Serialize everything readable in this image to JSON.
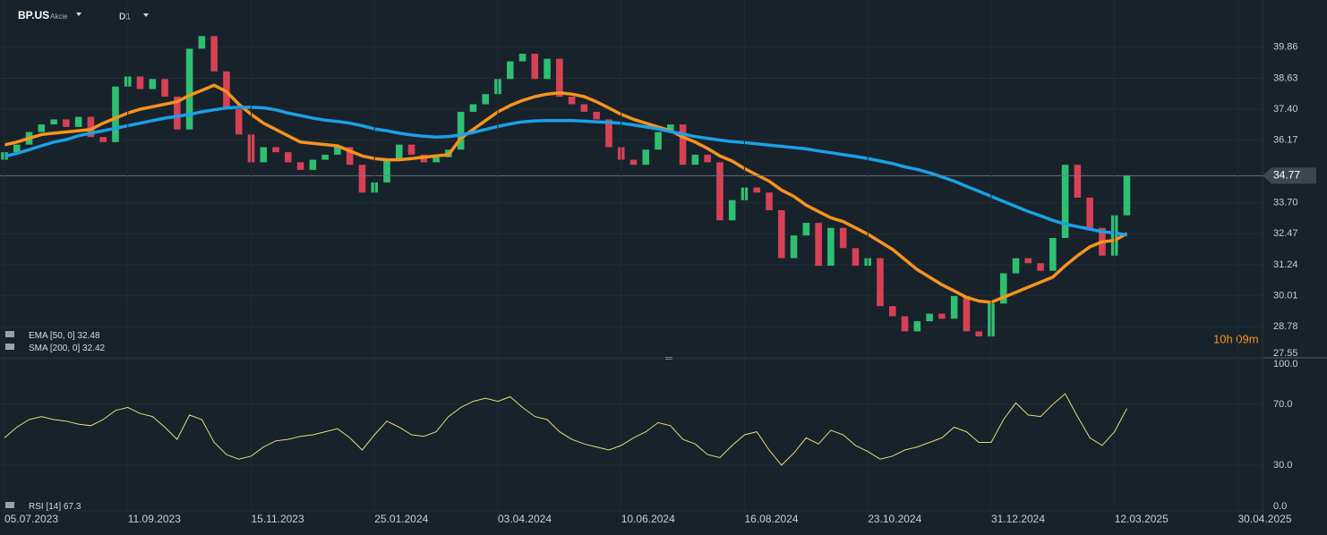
{
  "header": {
    "symbol": "BP.US",
    "kind": "Akcie",
    "timeframe": "D1",
    "countdown": "10h 09m"
  },
  "chart_data": [
    {
      "type": "candlestick",
      "up_color": "#2fbf71",
      "down_color": "#d74155",
      "grid": true,
      "xlim": [
        0,
        102
      ],
      "ylim": [
        27.55,
        41.73
      ],
      "yticks": [
        39.86,
        38.63,
        {
          "value": 37.4,
          "label": "37.40"
        },
        36.17,
        {
          "value": 33.7,
          "label": "33.70"
        },
        32.47,
        31.24,
        30.01,
        28.78,
        27.55
      ],
      "open": [
        35.4,
        35.7,
        36.0,
        36.5,
        36.8,
        37.0,
        36.7,
        37.1,
        36.3,
        36.1,
        38.3,
        38.7,
        38.2,
        38.6,
        37.9,
        36.6,
        39.8,
        40.3,
        38.9,
        37.4,
        36.4,
        35.3,
        35.9,
        35.7,
        35.3,
        35.0,
        35.4,
        35.6,
        35.9,
        35.2,
        34.1,
        34.5,
        35.4,
        36.0,
        35.6,
        35.3,
        35.5,
        35.8,
        37.3,
        37.6,
        38.0,
        38.6,
        39.3,
        39.6,
        38.6,
        39.4,
        37.9,
        37.6,
        37.3,
        37.0,
        35.9,
        35.4,
        35.2,
        35.8,
        36.5,
        36.8,
        35.2,
        35.6,
        35.3,
        33.0,
        33.8,
        34.3,
        34.1,
        33.4,
        31.5,
        32.4,
        32.9,
        31.2,
        32.7,
        31.9,
        31.2,
        31.5,
        29.6,
        29.2,
        28.6,
        29.0,
        29.3,
        29.1,
        30.0,
        28.6,
        28.4,
        29.7,
        30.9,
        31.5,
        31.3,
        31.0,
        32.3,
        35.2,
        33.9,
        32.7,
        31.6,
        33.2
      ],
      "close": [
        35.7,
        36.0,
        36.5,
        36.8,
        37.0,
        36.7,
        37.1,
        36.3,
        36.1,
        38.3,
        38.7,
        38.2,
        38.6,
        37.9,
        36.6,
        39.8,
        40.3,
        38.9,
        37.4,
        36.4,
        35.3,
        35.9,
        35.7,
        35.3,
        35.0,
        35.4,
        35.6,
        35.9,
        35.2,
        34.1,
        34.5,
        35.4,
        36.0,
        35.6,
        35.3,
        35.5,
        35.8,
        37.3,
        37.6,
        38.0,
        38.6,
        39.3,
        39.6,
        38.6,
        39.4,
        37.9,
        37.6,
        37.3,
        37.0,
        35.9,
        35.4,
        35.2,
        35.8,
        36.5,
        36.8,
        35.2,
        35.6,
        35.3,
        33.0,
        33.8,
        34.3,
        34.1,
        33.4,
        31.5,
        32.4,
        32.9,
        31.2,
        32.7,
        31.9,
        31.2,
        31.5,
        29.6,
        29.2,
        28.6,
        29.0,
        29.3,
        29.1,
        30.0,
        28.6,
        28.4,
        29.7,
        30.9,
        31.5,
        31.3,
        31.0,
        32.3,
        35.2,
        33.9,
        32.7,
        31.6,
        33.2,
        34.77
      ],
      "series": [
        {
          "name": "EMA [50, 0]",
          "color": "#f7931e",
          "values": [
            35.99,
            36.1,
            36.25,
            36.4,
            36.45,
            36.5,
            36.55,
            36.6,
            36.85,
            37.05,
            37.25,
            37.4,
            37.5,
            37.6,
            37.7,
            37.95,
            38.15,
            38.35,
            38.1,
            37.6,
            37.2,
            36.85,
            36.6,
            36.35,
            36.1,
            36.05,
            36.0,
            35.95,
            35.75,
            35.55,
            35.45,
            35.4,
            35.4,
            35.45,
            35.5,
            35.55,
            35.6,
            36.25,
            36.6,
            36.95,
            37.3,
            37.55,
            37.75,
            37.9,
            38.0,
            38.05,
            38.0,
            37.9,
            37.7,
            37.45,
            37.2,
            37.0,
            36.85,
            36.7,
            36.55,
            36.3,
            36.1,
            35.85,
            35.55,
            35.35,
            35.05,
            34.8,
            34.55,
            34.2,
            33.95,
            33.6,
            33.35,
            33.1,
            32.95,
            32.7,
            32.45,
            32.15,
            31.85,
            31.45,
            31.05,
            30.75,
            30.45,
            30.2,
            29.95,
            29.8,
            29.75,
            29.95,
            30.15,
            30.35,
            30.55,
            30.75,
            31.2,
            31.6,
            31.95,
            32.15,
            32.2,
            32.48
          ]
        },
        {
          "name": "SMA [200, 0]",
          "color": "#1ba1e6",
          "values": [
            35.53,
            35.65,
            35.8,
            35.95,
            36.1,
            36.2,
            36.35,
            36.45,
            36.55,
            36.65,
            36.75,
            36.85,
            36.95,
            37.05,
            37.12,
            37.2,
            37.3,
            37.38,
            37.45,
            37.48,
            37.48,
            37.46,
            37.38,
            37.25,
            37.15,
            37.05,
            36.97,
            36.92,
            36.85,
            36.75,
            36.62,
            36.55,
            36.45,
            36.38,
            36.33,
            36.3,
            36.32,
            36.38,
            36.48,
            36.6,
            36.72,
            36.82,
            36.9,
            36.94,
            36.95,
            36.95,
            36.95,
            36.93,
            36.9,
            36.88,
            36.85,
            36.78,
            36.7,
            36.62,
            36.52,
            36.42,
            36.32,
            36.25,
            36.18,
            36.12,
            36.08,
            36.03,
            35.98,
            35.93,
            35.88,
            35.83,
            35.75,
            35.68,
            35.6,
            35.53,
            35.45,
            35.35,
            35.25,
            35.12,
            35.02,
            34.88,
            34.72,
            34.55,
            34.35,
            34.15,
            33.95,
            33.75,
            33.55,
            33.35,
            33.18,
            33.0,
            32.85,
            32.75,
            32.65,
            32.55,
            32.5,
            32.42
          ]
        }
      ]
    },
    {
      "type": "line",
      "grid": true,
      "xlim": [
        0,
        102
      ],
      "ylim": [
        0,
        100
      ],
      "yticks": [
        {
          "value": 100,
          "label": "100.0"
        },
        {
          "value": 70,
          "label": "70.0"
        },
        {
          "value": 30,
          "label": "30.0"
        },
        {
          "value": 0,
          "label": "0.0"
        }
      ],
      "xticks": [
        {
          "value": 0,
          "label": "05.07.2023"
        },
        {
          "value": 10,
          "label": "11.09.2023"
        },
        {
          "value": 20,
          "label": "15.11.2023"
        },
        {
          "value": 30,
          "label": "25.01.2024"
        },
        {
          "value": 40,
          "label": "03.04.2024"
        },
        {
          "value": 50,
          "label": "10.06.2024"
        },
        {
          "value": 60,
          "label": "16.08.2024"
        },
        {
          "value": 70,
          "label": "23.10.2024"
        },
        {
          "value": 80,
          "label": "31.12.2024"
        },
        {
          "value": 90,
          "label": "12.03.2025"
        },
        {
          "value": 100,
          "label": "30.04.2025"
        }
      ],
      "series": [
        {
          "name": "RSI [14]",
          "color": "#e6dd7a",
          "values": [
            48,
            55,
            60,
            62,
            60,
            59,
            57,
            56,
            60,
            66,
            68,
            64,
            62,
            55,
            47,
            63,
            60,
            45,
            37,
            34,
            36,
            42,
            46,
            47,
            49,
            50,
            52,
            54,
            48,
            40,
            50,
            59,
            55,
            50,
            49,
            52,
            62,
            68,
            72,
            74,
            72,
            75,
            68,
            62,
            60,
            52,
            47,
            44,
            42,
            40,
            43,
            48,
            52,
            58,
            56,
            47,
            44,
            37,
            35,
            43,
            50,
            52,
            40,
            30,
            38,
            48,
            44,
            53,
            50,
            43,
            39,
            34,
            36,
            40,
            42,
            45,
            48,
            55,
            52,
            45,
            45,
            60,
            71,
            63,
            62,
            70,
            77,
            62,
            48,
            43,
            52,
            67.3
          ]
        }
      ]
    }
  ]
}
